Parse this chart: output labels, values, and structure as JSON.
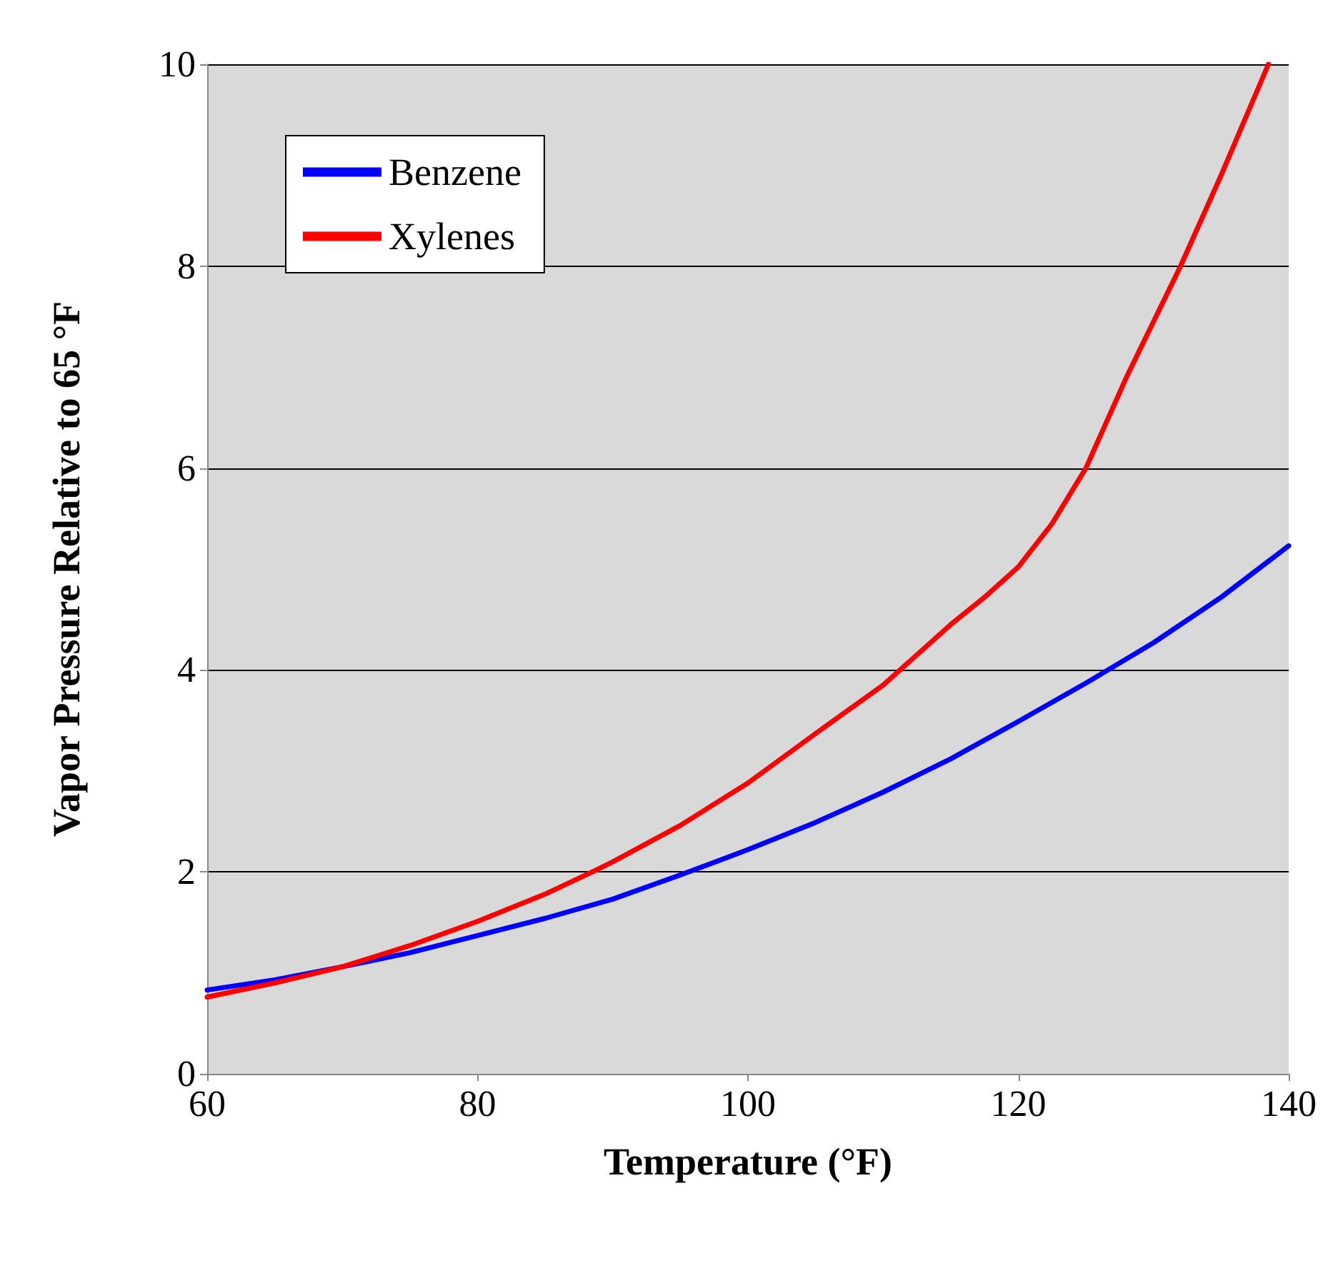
{
  "chart_data": {
    "type": "line",
    "xlabel": "Temperature (°F)",
    "ylabel": "Vapor Pressure Relative to 65 °F",
    "series": [
      {
        "name": "Benzene",
        "color": "#0000ff",
        "x": [
          60,
          65,
          70,
          75,
          80,
          85,
          90,
          95,
          100,
          105,
          110,
          115,
          120,
          125,
          130,
          135,
          140
        ],
        "values": [
          0.83,
          0.93,
          1.06,
          1.2,
          1.37,
          1.54,
          1.73,
          1.97,
          2.22,
          2.49,
          2.79,
          3.12,
          3.49,
          3.87,
          4.27,
          4.72,
          5.23
        ]
      },
      {
        "name": "Xylenes",
        "color": "#ff0000",
        "x": [
          60,
          65,
          70,
          75,
          80,
          85,
          88.5,
          90,
          95,
          100,
          105,
          110,
          115,
          117.5,
          120,
          122.5,
          125,
          128,
          130,
          132,
          135,
          138.5
        ],
        "values": [
          0.76,
          0.9,
          1.06,
          1.27,
          1.51,
          1.78,
          2.0,
          2.1,
          2.46,
          2.88,
          3.37,
          3.85,
          4.45,
          4.72,
          5.02,
          5.45,
          6.0,
          6.9,
          7.45,
          8.0,
          8.9,
          10
        ]
      }
    ],
    "xlim": [
      60,
      140
    ],
    "xticks": [
      60,
      80,
      100,
      120,
      140
    ],
    "ylim": [
      0,
      10
    ],
    "yticks": [
      0,
      2,
      4,
      6,
      8,
      10
    ],
    "grid": "y",
    "legend": "top left",
    "marker": "none",
    "line_style": "solid"
  }
}
